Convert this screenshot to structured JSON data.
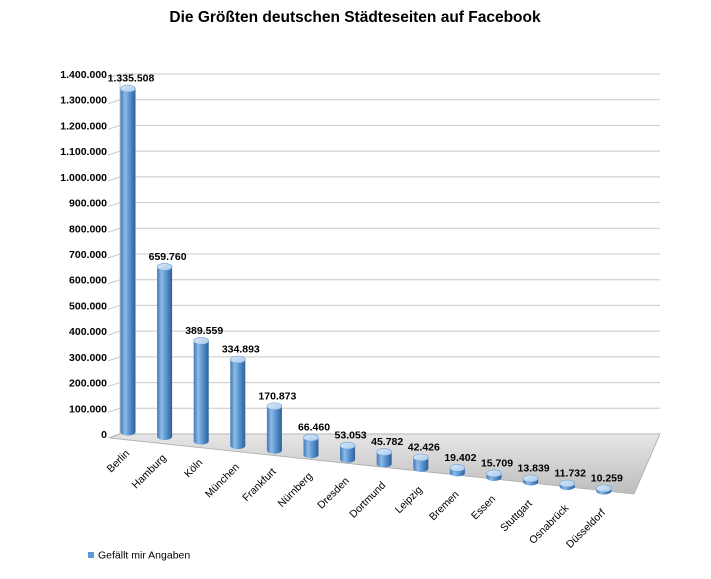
{
  "chart_data": {
    "type": "bar",
    "style": "3d-cylinder",
    "title": "Die Größten deutschen Städteseiten auf Facebook",
    "xlabel": "",
    "ylabel": "",
    "ylim": [
      0,
      1400000
    ],
    "yticks": [
      "0",
      "100.000",
      "200.000",
      "300.000",
      "400.000",
      "500.000",
      "600.000",
      "700.000",
      "800.000",
      "900.000",
      "1.000.000",
      "1.100.000",
      "1.200.000",
      "1.300.000",
      "1.400.000"
    ],
    "grid": true,
    "legend_position": "bottom-left",
    "categories": [
      "Berlin",
      "Hamburg",
      "Köln",
      "München",
      "Frankfurt",
      "Nürnberg",
      "Dresden",
      "Dortmund",
      "Leipzig",
      "Bremen",
      "Essen",
      "Stuttgart",
      "Osnabrück",
      "Düsseldorf"
    ],
    "series": [
      {
        "name": "Gefällt mir Angaben",
        "color": "#5b9bd5",
        "values": [
          1335508,
          659760,
          389559,
          334893,
          170873,
          66460,
          53053,
          45782,
          42426,
          19402,
          15709,
          13839,
          11732,
          10259
        ],
        "labels": [
          "1.335.508",
          "659.760",
          "389.559",
          "334.893",
          "170.873",
          "66.460",
          "53.053",
          "45.782",
          "42.426",
          "19.402",
          "15.709",
          "13.839",
          "11.732",
          "10.259"
        ]
      }
    ]
  }
}
